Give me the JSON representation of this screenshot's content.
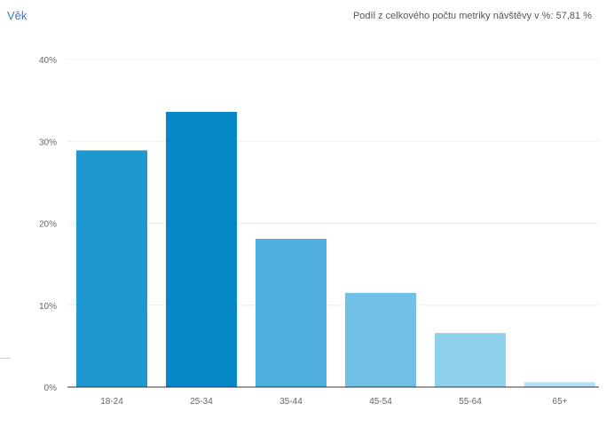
{
  "chart_data": {
    "type": "bar",
    "title": "Věk",
    "subtitle": "Podíl z celkového počtu metriky návštěvy v %: 57,81 %",
    "categories": [
      "18-24",
      "25-34",
      "35-44",
      "45-54",
      "55-64",
      "65+"
    ],
    "values": [
      28.9,
      33.6,
      18.1,
      11.5,
      6.6,
      0.6
    ],
    "ylim": [
      0,
      40
    ],
    "yticks": [
      {
        "value": 0,
        "label": "0%"
      },
      {
        "value": 10,
        "label": "10%"
      },
      {
        "value": 20,
        "label": "20%"
      },
      {
        "value": 30,
        "label": "30%"
      },
      {
        "value": 40,
        "label": "40%"
      }
    ],
    "grid": true,
    "legend": "none",
    "colors": [
      "#1f98cf",
      "#0687c6",
      "#4db0de",
      "#70c1e5",
      "#8fd0ec",
      "#b4e1f5"
    ],
    "axis_color": "#333333",
    "grid_color": "#eeeeee",
    "tick_label_color": "#666666"
  }
}
